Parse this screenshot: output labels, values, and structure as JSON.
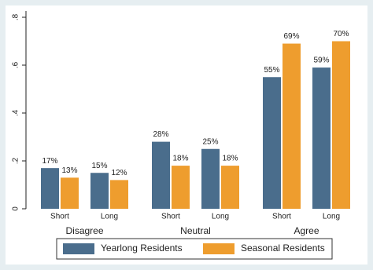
{
  "chart_data": {
    "type": "bar",
    "groups": [
      "Disagree",
      "Neutral",
      "Agree"
    ],
    "categories": [
      "Short",
      "Long",
      "Short",
      "Long",
      "Short",
      "Long"
    ],
    "series": [
      {
        "name": "Yearlong Residents",
        "color": "#4a6d8c",
        "values": [
          0.17,
          0.15,
          0.28,
          0.25,
          0.55,
          0.59
        ],
        "value_labels": [
          "17%",
          "15%",
          "28%",
          "25%",
          "55%",
          "59%"
        ]
      },
      {
        "name": "Seasonal Residents",
        "color": "#ee9d2e",
        "values": [
          0.13,
          0.12,
          0.18,
          0.18,
          0.69,
          0.7
        ],
        "value_labels": [
          "13%",
          "12%",
          "18%",
          "18%",
          "69%",
          "70%"
        ]
      }
    ],
    "ylim": [
      0,
      0.8
    ],
    "yticks": [
      0,
      {
        "value": 0.2,
        "label": ".2"
      },
      {
        "value": 0.4,
        "label": ".4"
      },
      {
        "value": 0.6,
        "label": ".6"
      },
      {
        "value": 0.8,
        "label": ".8"
      }
    ]
  }
}
